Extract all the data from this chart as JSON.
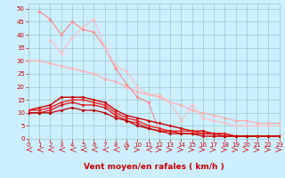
{
  "background_color": "#cceeff",
  "grid_color": "#99cccc",
  "xlabel": "Vent moyen/en rafales ( km/h )",
  "xlim": [
    0,
    23
  ],
  "ylim": [
    0,
    52
  ],
  "xticks": [
    0,
    1,
    2,
    3,
    4,
    5,
    6,
    7,
    8,
    9,
    10,
    11,
    12,
    13,
    14,
    15,
    16,
    17,
    18,
    19,
    20,
    21,
    22,
    23
  ],
  "yticks": [
    0,
    5,
    10,
    15,
    20,
    25,
    30,
    35,
    40,
    45,
    50
  ],
  "series": [
    {
      "x": [
        0,
        1,
        2,
        3,
        4,
        5,
        6,
        7,
        8,
        9,
        10,
        11,
        12,
        13,
        14,
        15,
        16,
        17,
        18,
        19,
        20,
        21,
        22,
        23
      ],
      "y": [
        30,
        30,
        29,
        28,
        27,
        26,
        25,
        23,
        22,
        20,
        18,
        17,
        16,
        14,
        13,
        11,
        10,
        9,
        8,
        7,
        7,
        6,
        6,
        6
      ],
      "color": "#ffaaaa",
      "linewidth": 0.8,
      "markersize": 2.0
    },
    {
      "x": [
        1,
        2,
        3,
        4,
        5,
        6,
        7,
        8,
        9,
        10,
        11,
        12,
        13,
        14,
        15,
        16,
        17,
        18,
        19,
        20,
        21,
        22,
        23
      ],
      "y": [
        49,
        46,
        40,
        45,
        42,
        41,
        35,
        27,
        21,
        16,
        14,
        3,
        3,
        2,
        2,
        2,
        1,
        1,
        1,
        1,
        1,
        1,
        1
      ],
      "color": "#ff8888",
      "linewidth": 0.8,
      "markersize": 2.0
    },
    {
      "x": [
        2,
        3,
        4,
        5,
        6,
        7,
        8,
        9,
        10,
        11,
        12,
        13,
        14,
        15,
        16,
        17,
        18,
        19,
        20,
        21,
        22,
        23
      ],
      "y": [
        38,
        33,
        39,
        43,
        46,
        35,
        28,
        26,
        20,
        17,
        17,
        14,
        7,
        13,
        8,
        7,
        6,
        5,
        5,
        5,
        5,
        5
      ],
      "color": "#ffbbbb",
      "linewidth": 0.8,
      "markersize": 2.0
    },
    {
      "x": [
        0,
        1,
        2,
        3,
        4,
        5,
        6,
        7,
        8,
        9,
        10,
        11,
        12,
        13,
        14,
        15,
        16,
        17,
        18,
        19,
        20,
        21,
        22,
        23
      ],
      "y": [
        11,
        12,
        13,
        16,
        16,
        16,
        15,
        14,
        11,
        9,
        8,
        7,
        6,
        5,
        4,
        3,
        3,
        2,
        2,
        1,
        1,
        1,
        1,
        1
      ],
      "color": "#cc0000",
      "linewidth": 1.0,
      "markersize": 2.0
    },
    {
      "x": [
        0,
        1,
        2,
        3,
        4,
        5,
        6,
        7,
        8,
        9,
        10,
        11,
        12,
        13,
        14,
        15,
        16,
        17,
        18,
        19,
        20,
        21,
        22,
        23
      ],
      "y": [
        11,
        11,
        12,
        14,
        15,
        15,
        14,
        13,
        10,
        8,
        7,
        5,
        4,
        3,
        3,
        3,
        2,
        2,
        2,
        1,
        1,
        1,
        1,
        1
      ],
      "color": "#ee2222",
      "linewidth": 1.0,
      "markersize": 2.0
    },
    {
      "x": [
        0,
        1,
        2,
        3,
        4,
        5,
        6,
        7,
        8,
        9,
        10,
        11,
        12,
        13,
        14,
        15,
        16,
        17,
        18,
        19,
        20,
        21,
        22,
        23
      ],
      "y": [
        10,
        10,
        11,
        13,
        14,
        13,
        13,
        12,
        9,
        7,
        6,
        4,
        3,
        3,
        2,
        2,
        2,
        2,
        1,
        1,
        1,
        1,
        1,
        1
      ],
      "color": "#dd1111",
      "linewidth": 0.9,
      "markersize": 2.0
    },
    {
      "x": [
        0,
        1,
        2,
        3,
        4,
        5,
        6,
        7,
        8,
        9,
        10,
        11,
        12,
        13,
        14,
        15,
        16,
        17,
        18,
        19,
        20,
        21,
        22,
        23
      ],
      "y": [
        10,
        10,
        10,
        11,
        12,
        11,
        11,
        10,
        8,
        7,
        5,
        4,
        3,
        2,
        2,
        2,
        1,
        1,
        1,
        1,
        1,
        1,
        1,
        1
      ],
      "color": "#bb0000",
      "linewidth": 0.9,
      "markersize": 2.0
    }
  ],
  "xlabel_color": "#cc0000",
  "xlabel_fontsize": 6.5,
  "tick_fontsize": 5,
  "tick_color": "#cc0000",
  "arrow_directions": [
    -1,
    -1,
    -1,
    -1,
    -1,
    -1,
    -1,
    -1,
    -1,
    0,
    1,
    -1,
    1,
    1,
    1,
    1,
    1,
    1,
    1,
    1,
    1,
    1,
    1,
    1
  ]
}
